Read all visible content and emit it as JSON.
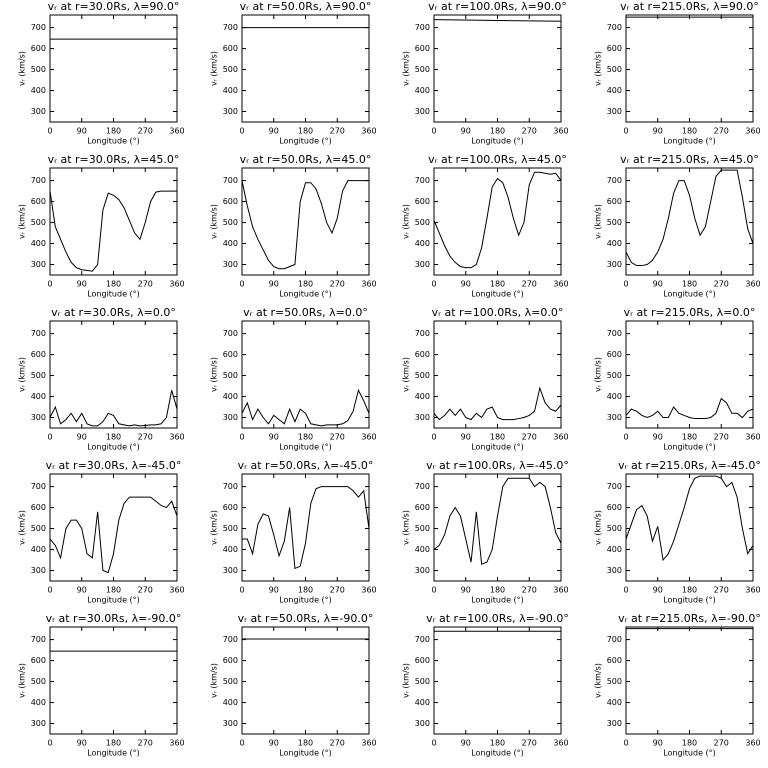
{
  "chart_data": [
    {
      "type": "line",
      "title": "vᵣ at r=30.0Rs, λ=90.0°",
      "xlabel": "Longitude (°)",
      "ylabel": "vᵣ (km/s)",
      "x": [
        0,
        360
      ],
      "values": [
        645,
        645
      ],
      "xlim": [
        0,
        360
      ],
      "ylim": [
        250,
        760
      ],
      "xticks": [
        0,
        90,
        180,
        270,
        360
      ],
      "yticks": [
        300,
        400,
        500,
        600,
        700
      ],
      "color": "#000000"
    },
    {
      "type": "line",
      "title": "vᵣ at r=50.0Rs, λ=90.0°",
      "xlabel": "Longitude (°)",
      "ylabel": "vᵣ (km/s)",
      "x": [
        0,
        360
      ],
      "values": [
        700,
        700
      ],
      "xlim": [
        0,
        360
      ],
      "ylim": [
        250,
        760
      ],
      "xticks": [
        0,
        90,
        180,
        270,
        360
      ],
      "yticks": [
        300,
        400,
        500,
        600,
        700
      ],
      "color": "#000000"
    },
    {
      "type": "line",
      "title": "vᵣ at r=100.0Rs, λ=90.0°",
      "xlabel": "Longitude (°)",
      "ylabel": "vᵣ (km/s)",
      "x": [
        0,
        360
      ],
      "values": [
        738,
        730
      ],
      "xlim": [
        0,
        360
      ],
      "ylim": [
        250,
        760
      ],
      "xticks": [
        0,
        90,
        180,
        270,
        360
      ],
      "yticks": [
        300,
        400,
        500,
        600,
        700
      ],
      "color": "#000000"
    },
    {
      "type": "line",
      "title": "vᵣ at r=215.0Rs, λ=90.0°",
      "xlabel": "Longitude (°)",
      "ylabel": "vᵣ (km/s)",
      "x": [
        0,
        360
      ],
      "values": [
        750,
        750
      ],
      "xlim": [
        0,
        360
      ],
      "ylim": [
        250,
        760
      ],
      "xticks": [
        0,
        90,
        180,
        270,
        360
      ],
      "yticks": [
        300,
        400,
        500,
        600,
        700
      ],
      "color": "#000000"
    },
    {
      "type": "line",
      "title": "vᵣ at r=30.0Rs, λ=45.0°",
      "xlabel": "Longitude (°)",
      "ylabel": "vᵣ (km/s)",
      "x": [
        0,
        15,
        30,
        45,
        60,
        75,
        90,
        105,
        120,
        135,
        150,
        165,
        180,
        195,
        210,
        225,
        240,
        255,
        270,
        285,
        300,
        315,
        330,
        345,
        360
      ],
      "values": [
        650,
        480,
        420,
        360,
        310,
        285,
        275,
        272,
        268,
        300,
        560,
        640,
        630,
        610,
        570,
        510,
        450,
        420,
        500,
        600,
        645,
        650,
        650,
        650,
        650
      ],
      "xlim": [
        0,
        360
      ],
      "ylim": [
        250,
        760
      ],
      "xticks": [
        0,
        90,
        180,
        270,
        360
      ],
      "yticks": [
        300,
        400,
        500,
        600,
        700
      ],
      "color": "#000000"
    },
    {
      "type": "line",
      "title": "vᵣ at r=50.0Rs, λ=45.0°",
      "xlabel": "Longitude (°)",
      "ylabel": "vᵣ (km/s)",
      "x": [
        0,
        15,
        30,
        45,
        60,
        75,
        90,
        105,
        120,
        135,
        150,
        165,
        180,
        195,
        210,
        225,
        240,
        255,
        270,
        285,
        300,
        315,
        330,
        345,
        360
      ],
      "values": [
        700,
        580,
        480,
        420,
        370,
        320,
        290,
        280,
        280,
        290,
        300,
        600,
        690,
        690,
        660,
        590,
        500,
        450,
        520,
        650,
        700,
        700,
        700,
        700,
        700
      ],
      "xlim": [
        0,
        360
      ],
      "ylim": [
        250,
        760
      ],
      "xticks": [
        0,
        90,
        180,
        270,
        360
      ],
      "yticks": [
        300,
        400,
        500,
        600,
        700
      ],
      "color": "#000000"
    },
    {
      "type": "line",
      "title": "vᵣ at r=100.0Rs, λ=45.0°",
      "xlabel": "Longitude (°)",
      "ylabel": "vᵣ (km/s)",
      "x": [
        0,
        15,
        30,
        45,
        60,
        75,
        90,
        105,
        120,
        135,
        150,
        165,
        180,
        195,
        210,
        225,
        240,
        255,
        270,
        285,
        300,
        315,
        330,
        345,
        360
      ],
      "values": [
        510,
        450,
        390,
        340,
        310,
        290,
        285,
        285,
        300,
        380,
        520,
        670,
        710,
        690,
        620,
        520,
        440,
        500,
        680,
        740,
        740,
        735,
        730,
        735,
        700
      ],
      "xlim": [
        0,
        360
      ],
      "ylim": [
        250,
        760
      ],
      "xticks": [
        0,
        90,
        180,
        270,
        360
      ],
      "yticks": [
        300,
        400,
        500,
        600,
        700
      ],
      "color": "#000000"
    },
    {
      "type": "line",
      "title": "vᵣ at r=215.0Rs, λ=45.0°",
      "xlabel": "Longitude (°)",
      "ylabel": "vᵣ (km/s)",
      "x": [
        0,
        15,
        30,
        45,
        60,
        75,
        90,
        105,
        120,
        135,
        150,
        165,
        180,
        195,
        210,
        225,
        240,
        255,
        270,
        285,
        300,
        315,
        330,
        345,
        360
      ],
      "values": [
        360,
        310,
        295,
        295,
        300,
        320,
        360,
        420,
        520,
        640,
        700,
        700,
        630,
        520,
        440,
        480,
        600,
        720,
        750,
        750,
        750,
        750,
        620,
        470,
        400
      ],
      "xlim": [
        0,
        360
      ],
      "ylim": [
        250,
        760
      ],
      "xticks": [
        0,
        90,
        180,
        270,
        360
      ],
      "yticks": [
        300,
        400,
        500,
        600,
        700
      ],
      "color": "#000000"
    },
    {
      "type": "line",
      "title": "vᵣ at r=30.0Rs, λ=0.0°",
      "xlabel": "Longitude (°)",
      "ylabel": "vᵣ (km/s)",
      "x": [
        0,
        15,
        30,
        45,
        60,
        75,
        90,
        105,
        120,
        135,
        150,
        165,
        180,
        195,
        210,
        225,
        240,
        255,
        270,
        285,
        300,
        315,
        330,
        345,
        360
      ],
      "values": [
        300,
        350,
        270,
        290,
        320,
        280,
        320,
        270,
        260,
        260,
        280,
        320,
        310,
        270,
        265,
        260,
        265,
        260,
        262,
        265,
        265,
        270,
        300,
        430,
        340
      ],
      "xlim": [
        0,
        360
      ],
      "ylim": [
        250,
        760
      ],
      "xticks": [
        0,
        90,
        180,
        270,
        360
      ],
      "yticks": [
        300,
        400,
        500,
        600,
        700
      ],
      "color": "#000000"
    },
    {
      "type": "line",
      "title": "vᵣ at r=50.0Rs, λ=0.0°",
      "xlabel": "Longitude (°)",
      "ylabel": "vᵣ (km/s)",
      "x": [
        0,
        15,
        30,
        45,
        60,
        75,
        90,
        105,
        120,
        135,
        150,
        165,
        180,
        195,
        210,
        225,
        240,
        255,
        270,
        285,
        300,
        315,
        330,
        345,
        360
      ],
      "values": [
        320,
        370,
        290,
        340,
        300,
        270,
        310,
        290,
        270,
        340,
        280,
        340,
        320,
        270,
        265,
        260,
        265,
        265,
        265,
        270,
        285,
        330,
        430,
        380,
        320
      ],
      "xlim": [
        0,
        360
      ],
      "ylim": [
        250,
        760
      ],
      "xticks": [
        0,
        90,
        180,
        270,
        360
      ],
      "yticks": [
        300,
        400,
        500,
        600,
        700
      ],
      "color": "#000000"
    },
    {
      "type": "line",
      "title": "vᵣ at r=100.0Rs, λ=0.0°",
      "xlabel": "Longitude (°)",
      "ylabel": "vᵣ (km/s)",
      "x": [
        0,
        15,
        30,
        45,
        60,
        75,
        90,
        105,
        120,
        135,
        150,
        165,
        180,
        195,
        210,
        225,
        240,
        255,
        270,
        285,
        300,
        315,
        330,
        345,
        360
      ],
      "values": [
        320,
        290,
        310,
        340,
        310,
        340,
        300,
        290,
        320,
        300,
        340,
        350,
        300,
        290,
        290,
        290,
        295,
        300,
        310,
        330,
        440,
        370,
        340,
        330,
        360
      ],
      "xlim": [
        0,
        360
      ],
      "ylim": [
        250,
        760
      ],
      "xticks": [
        0,
        90,
        180,
        270,
        360
      ],
      "yticks": [
        300,
        400,
        500,
        600,
        700
      ],
      "color": "#000000"
    },
    {
      "type": "line",
      "title": "vᵣ at r=215.0Rs, λ=0.0°",
      "xlabel": "Longitude (°)",
      "ylabel": "vᵣ (km/s)",
      "x": [
        0,
        15,
        30,
        45,
        60,
        75,
        90,
        105,
        120,
        135,
        150,
        165,
        180,
        195,
        210,
        225,
        240,
        255,
        270,
        285,
        300,
        315,
        330,
        345,
        360
      ],
      "values": [
        310,
        340,
        330,
        310,
        300,
        310,
        330,
        300,
        300,
        350,
        320,
        310,
        300,
        295,
        295,
        295,
        300,
        320,
        390,
        370,
        320,
        320,
        300,
        330,
        340
      ],
      "xlim": [
        0,
        360
      ],
      "ylim": [
        250,
        760
      ],
      "xticks": [
        0,
        90,
        180,
        270,
        360
      ],
      "yticks": [
        300,
        400,
        500,
        600,
        700
      ],
      "color": "#000000"
    },
    {
      "type": "line",
      "title": "vᵣ at r=30.0Rs, λ=-45.0°",
      "xlabel": "Longitude (°)",
      "ylabel": "vᵣ (km/s)",
      "x": [
        0,
        15,
        30,
        45,
        60,
        75,
        90,
        105,
        120,
        135,
        150,
        165,
        180,
        195,
        210,
        225,
        240,
        255,
        270,
        285,
        300,
        315,
        330,
        345,
        360
      ],
      "values": [
        450,
        420,
        360,
        500,
        540,
        540,
        500,
        380,
        360,
        580,
        300,
        290,
        380,
        540,
        620,
        650,
        650,
        650,
        650,
        650,
        630,
        610,
        600,
        630,
        560
      ],
      "xlim": [
        0,
        360
      ],
      "ylim": [
        250,
        760
      ],
      "xticks": [
        0,
        90,
        180,
        270,
        360
      ],
      "yticks": [
        300,
        400,
        500,
        600,
        700
      ],
      "color": "#000000"
    },
    {
      "type": "line",
      "title": "vᵣ at r=50.0Rs, λ=-45.0°",
      "xlabel": "Longitude (°)",
      "ylabel": "vᵣ (km/s)",
      "x": [
        0,
        15,
        30,
        45,
        60,
        75,
        90,
        105,
        120,
        135,
        150,
        165,
        180,
        195,
        210,
        225,
        240,
        255,
        270,
        285,
        300,
        315,
        330,
        345,
        360
      ],
      "values": [
        450,
        450,
        380,
        520,
        570,
        560,
        470,
        370,
        440,
        600,
        310,
        320,
        430,
        620,
        690,
        700,
        700,
        700,
        700,
        700,
        700,
        680,
        650,
        680,
        500
      ],
      "xlim": [
        0,
        360
      ],
      "ylim": [
        250,
        760
      ],
      "xticks": [
        0,
        90,
        180,
        270,
        360
      ],
      "yticks": [
        300,
        400,
        500,
        600,
        700
      ],
      "color": "#000000"
    },
    {
      "type": "line",
      "title": "vᵣ at r=100.0Rs, λ=-45.0°",
      "xlabel": "Longitude (°)",
      "ylabel": "vᵣ (km/s)",
      "x": [
        0,
        15,
        30,
        45,
        60,
        75,
        90,
        105,
        120,
        135,
        150,
        165,
        180,
        195,
        210,
        225,
        240,
        255,
        270,
        285,
        300,
        315,
        330,
        345,
        360
      ],
      "values": [
        400,
        420,
        470,
        560,
        600,
        560,
        450,
        340,
        580,
        330,
        340,
        400,
        560,
        700,
        740,
        740,
        740,
        740,
        740,
        700,
        720,
        700,
        600,
        480,
        430
      ],
      "xlim": [
        0,
        360
      ],
      "ylim": [
        250,
        760
      ],
      "xticks": [
        0,
        90,
        180,
        270,
        360
      ],
      "yticks": [
        300,
        400,
        500,
        600,
        700
      ],
      "color": "#000000"
    },
    {
      "type": "line",
      "title": "vᵣ at r=215.0Rs, λ=-45.0°",
      "xlabel": "Longitude (°)",
      "ylabel": "vᵣ (km/s)",
      "x": [
        0,
        15,
        30,
        45,
        60,
        75,
        90,
        105,
        120,
        135,
        150,
        165,
        180,
        195,
        210,
        225,
        240,
        255,
        270,
        285,
        300,
        315,
        330,
        345,
        360
      ],
      "values": [
        450,
        520,
        590,
        610,
        560,
        440,
        510,
        350,
        380,
        440,
        520,
        600,
        690,
        740,
        750,
        750,
        750,
        750,
        740,
        700,
        720,
        650,
        500,
        380,
        420
      ],
      "xlim": [
        0,
        360
      ],
      "ylim": [
        250,
        760
      ],
      "xticks": [
        0,
        90,
        180,
        270,
        360
      ],
      "yticks": [
        300,
        400,
        500,
        600,
        700
      ],
      "color": "#000000"
    },
    {
      "type": "line",
      "title": "vᵣ at r=30.0Rs, λ=-90.0°",
      "xlabel": "Longitude (°)",
      "ylabel": "vᵣ (km/s)",
      "x": [
        0,
        360
      ],
      "values": [
        645,
        645
      ],
      "xlim": [
        0,
        360
      ],
      "ylim": [
        250,
        760
      ],
      "xticks": [
        0,
        90,
        180,
        270,
        360
      ],
      "yticks": [
        300,
        400,
        500,
        600,
        700
      ],
      "color": "#000000"
    },
    {
      "type": "line",
      "title": "vᵣ at r=50.0Rs, λ=-90.0°",
      "xlabel": "Longitude (°)",
      "ylabel": "vᵣ (km/s)",
      "x": [
        0,
        360
      ],
      "values": [
        703,
        703
      ],
      "xlim": [
        0,
        360
      ],
      "ylim": [
        250,
        760
      ],
      "xticks": [
        0,
        90,
        180,
        270,
        360
      ],
      "yticks": [
        300,
        400,
        500,
        600,
        700
      ],
      "color": "#000000"
    },
    {
      "type": "line",
      "title": "vᵣ at r=100.0Rs, λ=-90.0°",
      "xlabel": "Longitude (°)",
      "ylabel": "vᵣ (km/s)",
      "x": [
        0,
        360
      ],
      "values": [
        740,
        740
      ],
      "xlim": [
        0,
        360
      ],
      "ylim": [
        250,
        760
      ],
      "xticks": [
        0,
        90,
        180,
        270,
        360
      ],
      "yticks": [
        300,
        400,
        500,
        600,
        700
      ],
      "color": "#000000"
    },
    {
      "type": "line",
      "title": "vᵣ at r=215.0Rs, λ=-90.0°",
      "xlabel": "Longitude (°)",
      "ylabel": "vᵣ (km/s)",
      "x": [
        0,
        360
      ],
      "values": [
        752,
        752
      ],
      "xlim": [
        0,
        360
      ],
      "ylim": [
        250,
        760
      ],
      "xticks": [
        0,
        90,
        180,
        270,
        360
      ],
      "yticks": [
        300,
        400,
        500,
        600,
        700
      ],
      "color": "#000000"
    }
  ]
}
